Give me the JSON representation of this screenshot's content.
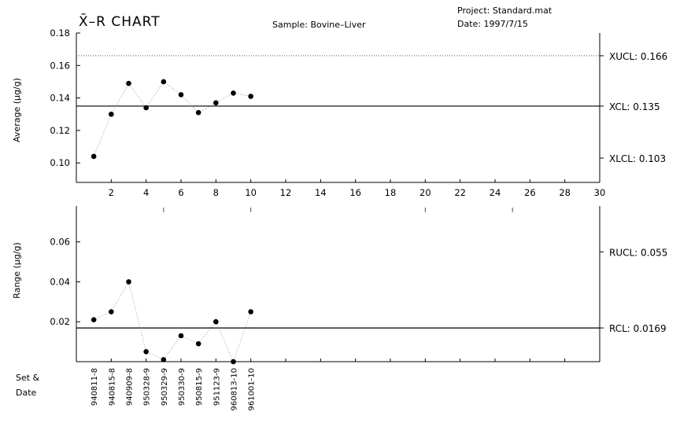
{
  "header": {
    "title": "X̄–R CHART",
    "sample": "Sample: Bovine–Liver",
    "project": "Project: Standard.mat",
    "date": "Date: 1997/7/15"
  },
  "chart_data": [
    {
      "type": "scatter",
      "name": "average",
      "ylabel": "Average (µg/g)",
      "xlim": [
        0,
        30
      ],
      "ylim": [
        0.088,
        0.18
      ],
      "x_ticks": [
        "2",
        "4",
        "6",
        "8",
        "10",
        "12",
        "14",
        "16",
        "18",
        "20",
        "22",
        "24",
        "26",
        "28",
        "30"
      ],
      "y_ticks": [
        "0.18",
        "0.16",
        "0.14",
        "0.12",
        "0.10"
      ],
      "y_tick_values": [
        0.18,
        0.16,
        0.14,
        0.12,
        0.1
      ],
      "x": [
        1,
        2,
        3,
        4,
        5,
        6,
        7,
        8,
        9,
        10
      ],
      "values": [
        0.104,
        0.13,
        0.149,
        0.134,
        0.15,
        0.142,
        0.131,
        0.137,
        0.143,
        0.141
      ],
      "limits": [
        {
          "label": "XUCL: 0.166",
          "value": 0.166,
          "style": "dotted"
        },
        {
          "label": "XCL: 0.135",
          "value": 0.135,
          "style": "solid"
        },
        {
          "label": "XLCL: 0.103",
          "value": 0.103,
          "style": "none"
        }
      ]
    },
    {
      "type": "scatter",
      "name": "range",
      "ylabel": "Range (µg/g)",
      "xlim": [
        0,
        30
      ],
      "ylim": [
        0,
        0.078
      ],
      "y_ticks": [
        "0.06",
        "0.04",
        "0.02"
      ],
      "y_tick_values": [
        0.06,
        0.04,
        0.02
      ],
      "x": [
        1,
        2,
        3,
        4,
        5,
        6,
        7,
        8,
        9,
        10
      ],
      "values": [
        0.021,
        0.025,
        0.04,
        0.005,
        0.001,
        0.013,
        0.009,
        0.02,
        0.0,
        0.025
      ],
      "limits": [
        {
          "label": "RUCL: 0.055",
          "value": 0.055,
          "style": "none"
        },
        {
          "label": "RCL: 0.0169",
          "value": 0.0169,
          "style": "solid"
        }
      ]
    }
  ],
  "set_label": [
    "Set &",
    "Date"
  ],
  "set_dates": [
    "940811-8",
    "940815-8",
    "940909-8",
    "950328-9",
    "950329-9",
    "950330-9",
    "950815-9",
    "951123-9",
    "960813-10",
    "961001-10"
  ]
}
